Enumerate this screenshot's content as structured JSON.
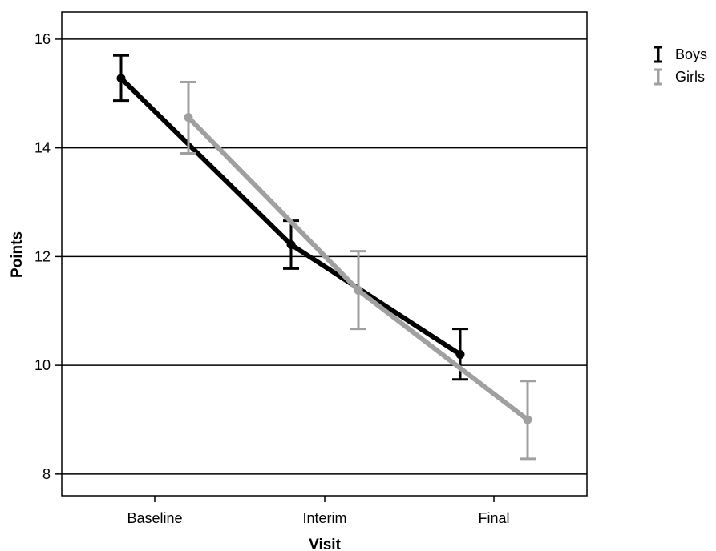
{
  "chart_data": {
    "type": "line",
    "title": "",
    "xlabel": "Visit",
    "ylabel": "Points",
    "categories": [
      "Baseline",
      "Interim",
      "Final"
    ],
    "ylim": [
      7.6,
      16.5
    ],
    "yticks": [
      8,
      10,
      12,
      14,
      16
    ],
    "ytick_labels": [
      "8",
      "10",
      "12",
      "14",
      "16"
    ],
    "grid": "horizontal",
    "legend_position": "top-right",
    "error_bars": true,
    "series": [
      {
        "name": "Boys",
        "color": "#000000",
        "values": [
          15.28,
          12.22,
          10.2
        ],
        "lower": [
          14.87,
          11.78,
          9.74
        ],
        "upper": [
          15.7,
          12.66,
          10.67
        ]
      },
      {
        "name": "Girls",
        "color": "#a0a0a0",
        "values": [
          14.56,
          11.38,
          9.0
        ],
        "lower": [
          13.9,
          10.67,
          8.28
        ],
        "upper": [
          15.21,
          12.1,
          9.71
        ]
      }
    ]
  }
}
